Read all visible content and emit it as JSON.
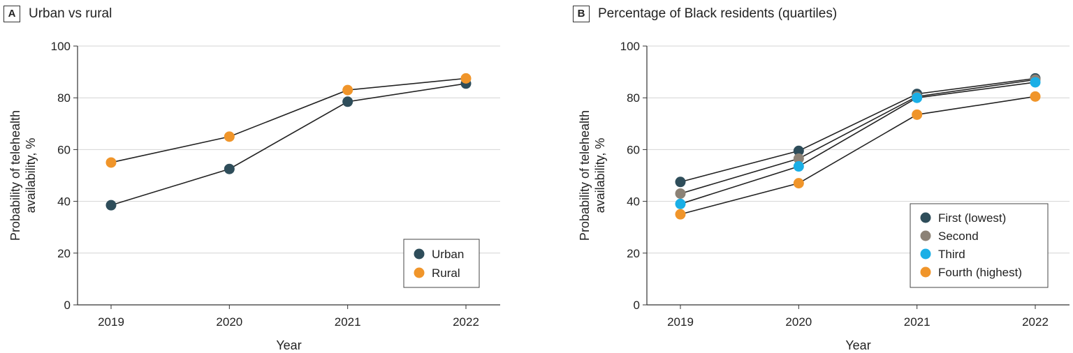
{
  "chart_data": [
    {
      "type": "line",
      "panel_letter": "A",
      "title": "Urban vs rural",
      "xlabel": "Year",
      "ylabel": "Probability of telehealth availability, %",
      "ylabel_lines": [
        "Probability of telehealth",
        "availability, %"
      ],
      "categories": [
        "2019",
        "2020",
        "2021",
        "2022"
      ],
      "ylim": [
        0,
        100
      ],
      "yticks": [
        "0",
        "20",
        "40",
        "60",
        "80",
        "100"
      ],
      "grid": true,
      "legend_position": "bottom-right",
      "series": [
        {
          "name": "Urban",
          "color": "#2e4d5a",
          "values": [
            38.5,
            52.5,
            78.5,
            85.5
          ]
        },
        {
          "name": "Rural",
          "color": "#f0952a",
          "values": [
            55,
            65,
            83,
            87.5
          ]
        }
      ]
    },
    {
      "type": "line",
      "panel_letter": "B",
      "title": "Percentage of Black residents (quartiles)",
      "xlabel": "Year",
      "ylabel": "Probability of telehealth availability, %",
      "ylabel_lines": [
        "Probability of telehealth",
        "availability, %"
      ],
      "categories": [
        "2019",
        "2020",
        "2021",
        "2022"
      ],
      "ylim": [
        0,
        100
      ],
      "yticks": [
        "0",
        "20",
        "40",
        "60",
        "80",
        "100"
      ],
      "grid": true,
      "legend_position": "bottom-right",
      "series": [
        {
          "name": "First (lowest)",
          "color": "#2e4d5a",
          "values": [
            47.5,
            59.5,
            81.5,
            87.5
          ]
        },
        {
          "name": "Second",
          "color": "#8c8276",
          "values": [
            43,
            56.5,
            80.5,
            87
          ]
        },
        {
          "name": "Third",
          "color": "#1aafe6",
          "values": [
            39,
            53.5,
            80,
            86
          ]
        },
        {
          "name": "Fourth (highest)",
          "color": "#f0952a",
          "values": [
            35,
            47,
            73.5,
            80.5
          ]
        }
      ]
    }
  ]
}
